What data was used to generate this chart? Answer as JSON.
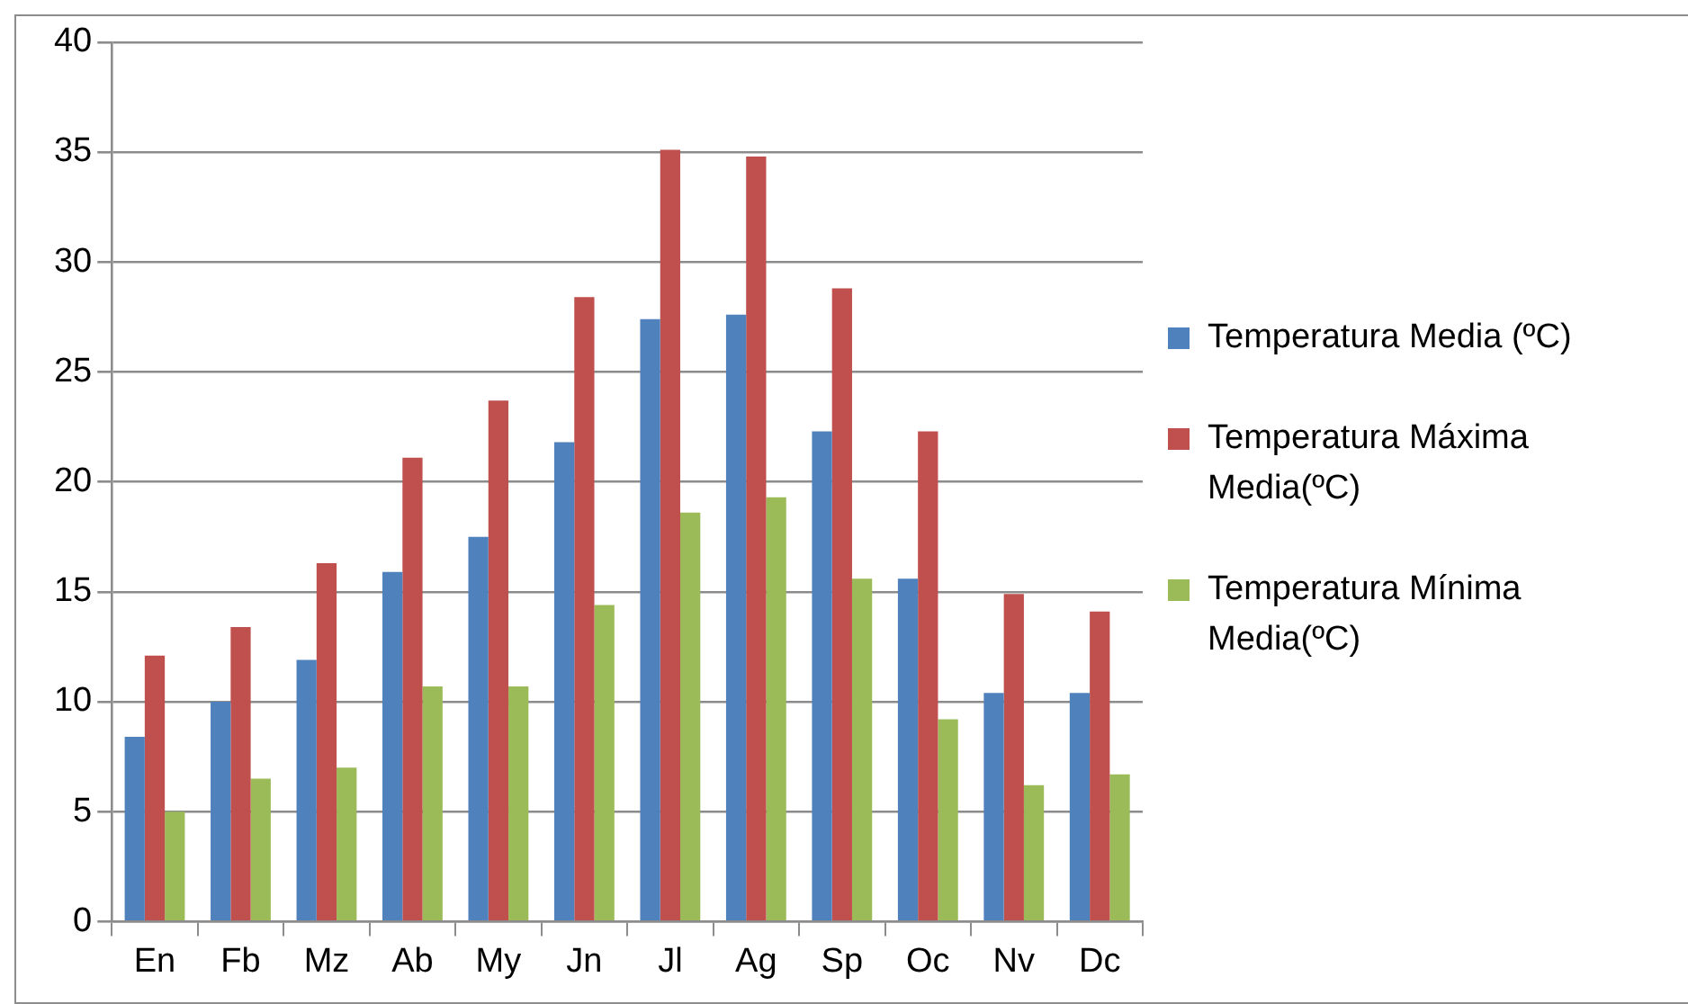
{
  "chart_data": {
    "type": "bar",
    "categories": [
      "En",
      "Fb",
      "Mz",
      "Ab",
      "My",
      "Jn",
      "Jl",
      "Ag",
      "Sp",
      "Oc",
      "Nv",
      "Dc"
    ],
    "series": [
      {
        "name": "Temperatura Media (ºC)",
        "color": "#4f81bd",
        "values": [
          8.4,
          10.0,
          11.9,
          15.9,
          17.5,
          21.8,
          27.4,
          27.6,
          22.3,
          15.6,
          10.4,
          10.4
        ]
      },
      {
        "name": "Temperatura Máxima Media(ºC)",
        "color": "#c0504d",
        "values": [
          12.1,
          13.4,
          16.3,
          21.1,
          23.7,
          28.4,
          35.1,
          34.8,
          28.8,
          22.3,
          14.9,
          14.1
        ]
      },
      {
        "name": "Temperatura Mínima Media(ºC)",
        "color": "#9bbb59",
        "values": [
          5.0,
          6.5,
          7.0,
          10.7,
          10.7,
          14.4,
          18.6,
          19.3,
          15.6,
          9.2,
          6.2,
          6.7
        ]
      }
    ],
    "ylim": [
      0,
      40
    ],
    "yticks": [
      0,
      5,
      10,
      15,
      20,
      25,
      30,
      35,
      40
    ],
    "grid": "y",
    "legend": "right"
  }
}
